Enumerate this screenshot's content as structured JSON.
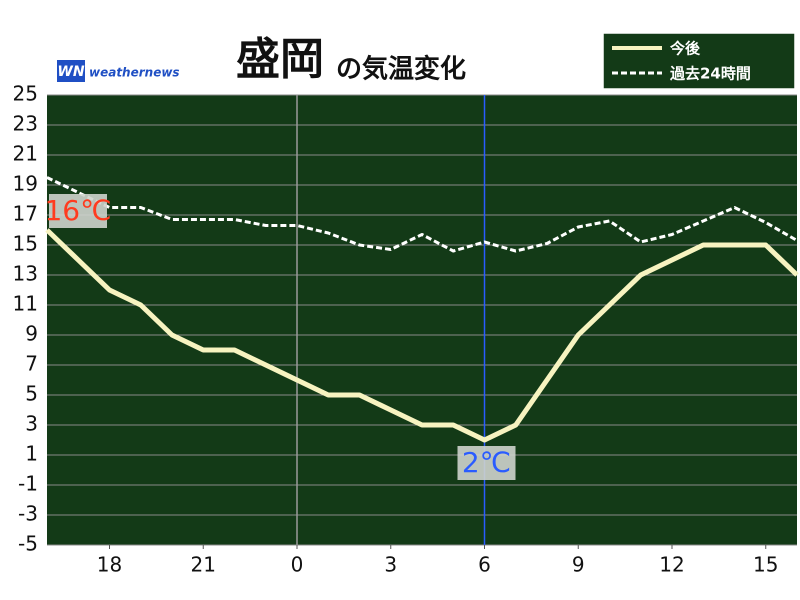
{
  "chart_data": {
    "type": "line",
    "title": "盛岡",
    "title_suffix": "の気温変化",
    "logo": {
      "mark": "WN",
      "text": "weathernews"
    },
    "x": [
      16,
      17,
      18,
      19,
      20,
      21,
      22,
      23,
      24,
      25,
      26,
      27,
      28,
      29,
      30,
      31,
      32,
      33,
      34,
      35,
      36,
      37,
      38,
      39,
      40
    ],
    "series": [
      {
        "name": "今後",
        "color": "#f7f3c0",
        "dashed": false,
        "values": [
          16,
          14,
          12,
          11,
          9,
          8,
          8,
          7,
          6,
          5,
          5,
          4,
          3,
          3,
          2,
          3,
          6,
          9,
          11,
          13,
          14,
          15,
          15,
          15,
          13
        ]
      },
      {
        "name": "過去24時間",
        "color": "#ffffff",
        "dashed": true,
        "values": [
          19.5,
          18.5,
          17.5,
          17.5,
          16.7,
          16.7,
          16.7,
          16.3,
          16.3,
          15.8,
          15,
          14.7,
          15.7,
          14.6,
          15.2,
          14.6,
          15.1,
          16.2,
          16.6,
          15.2,
          15.7,
          16.6,
          17.5,
          16.5,
          15.3
        ]
      }
    ],
    "annotations": [
      {
        "text": "16℃",
        "color": "#ff3b1f",
        "series": 0,
        "index": 0
      },
      {
        "text": "2℃",
        "color": "#2a5cff",
        "series": 0,
        "index": 14
      }
    ],
    "xlim": [
      16,
      40
    ],
    "xticks": [
      {
        "value": 18,
        "label": "18"
      },
      {
        "value": 21,
        "label": "21"
      },
      {
        "value": 24,
        "label": "0"
      },
      {
        "value": 27,
        "label": "3"
      },
      {
        "value": 30,
        "label": "6"
      },
      {
        "value": 33,
        "label": "9"
      },
      {
        "value": 36,
        "label": "12"
      },
      {
        "value": 39,
        "label": "15"
      }
    ],
    "vlines": [
      {
        "value": 24,
        "color": "#9a9a9a"
      },
      {
        "value": 30,
        "color": "#2a5cff"
      }
    ],
    "ylim": [
      -5,
      25
    ],
    "yticks": [
      -5,
      -3,
      -1,
      1,
      3,
      5,
      7,
      9,
      11,
      13,
      15,
      17,
      19,
      21,
      23,
      25
    ],
    "grid": true,
    "background": "#133a17"
  }
}
